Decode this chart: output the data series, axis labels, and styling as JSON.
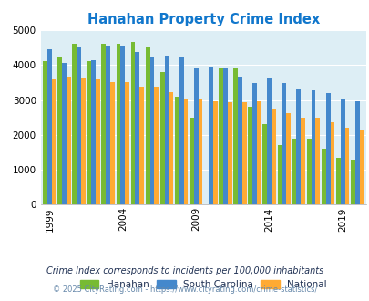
{
  "title": "Hanahan Property Crime Index",
  "title_color": "#1177cc",
  "years": [
    1999,
    2000,
    2001,
    2002,
    2003,
    2004,
    2005,
    2006,
    2007,
    2008,
    2009,
    2010,
    2011,
    2012,
    2013,
    2014,
    2015,
    2016,
    2017,
    2018,
    2019,
    2020
  ],
  "hanahan": [
    4100,
    4250,
    4600,
    4100,
    4600,
    4600,
    4650,
    4500,
    3800,
    3100,
    2500,
    0,
    3900,
    3900,
    2800,
    2300,
    1700,
    1900,
    1900,
    1600,
    1350,
    1300
  ],
  "south_carolina": [
    4440,
    4050,
    4530,
    4130,
    4560,
    4560,
    4380,
    4250,
    4280,
    4250,
    3910,
    3920,
    3910,
    3680,
    3490,
    3620,
    3490,
    3300,
    3280,
    3200,
    3040,
    2960
  ],
  "national": [
    3600,
    3670,
    3640,
    3600,
    3500,
    3500,
    3370,
    3370,
    3220,
    3050,
    3020,
    2960,
    2940,
    2940,
    2960,
    2760,
    2610,
    2500,
    2480,
    2370,
    2200,
    2130
  ],
  "hanahan_color": "#77bb33",
  "sc_color": "#4488cc",
  "national_color": "#ffaa33",
  "bg_color": "#ddeef5",
  "ylim": [
    0,
    5000
  ],
  "yticks": [
    0,
    1000,
    2000,
    3000,
    4000,
    5000
  ],
  "xtick_years": [
    1999,
    2004,
    2009,
    2014,
    2019
  ],
  "footnote1": "Crime Index corresponds to incidents per 100,000 inhabitants",
  "footnote1_color": "#223355",
  "footnote2": "© 2025 CityRating.com - https://www.cityrating.com/crime-statistics/",
  "footnote2_color": "#6688aa",
  "legend_labels": [
    "Hanahan",
    "South Carolina",
    "National"
  ]
}
